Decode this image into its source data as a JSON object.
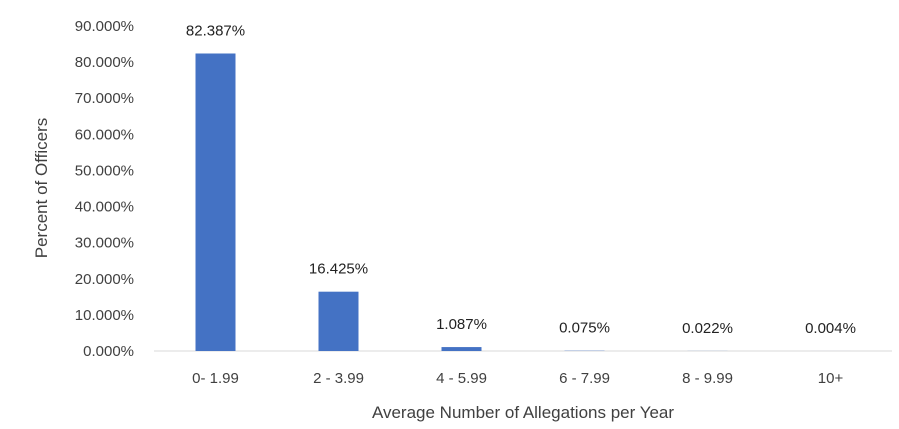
{
  "chart_data": {
    "type": "bar",
    "categories": [
      "0- 1.99",
      "2 - 3.99",
      "4 - 5.99",
      "6 - 7.99",
      "8 - 9.99",
      "10+"
    ],
    "values": [
      82.387,
      16.425,
      1.087,
      0.075,
      0.022,
      0.004
    ],
    "data_labels": [
      "82.387%",
      "16.425%",
      "1.087%",
      "0.075%",
      "0.022%",
      "0.004%"
    ],
    "title": "",
    "xlabel": "Average Number of Allegations per Year",
    "ylabel": "Percent of Officers",
    "ylim": [
      0,
      90
    ],
    "yticks": [
      0,
      10,
      20,
      30,
      40,
      50,
      60,
      70,
      80,
      90
    ],
    "ytick_labels": [
      "0.000%",
      "10.000%",
      "20.000%",
      "30.000%",
      "40.000%",
      "50.000%",
      "60.000%",
      "70.000%",
      "80.000%",
      "90.000%"
    ],
    "grid": false,
    "legend": "none",
    "bar_color": "#4472c4",
    "axis_color": "#d9d9d9"
  }
}
